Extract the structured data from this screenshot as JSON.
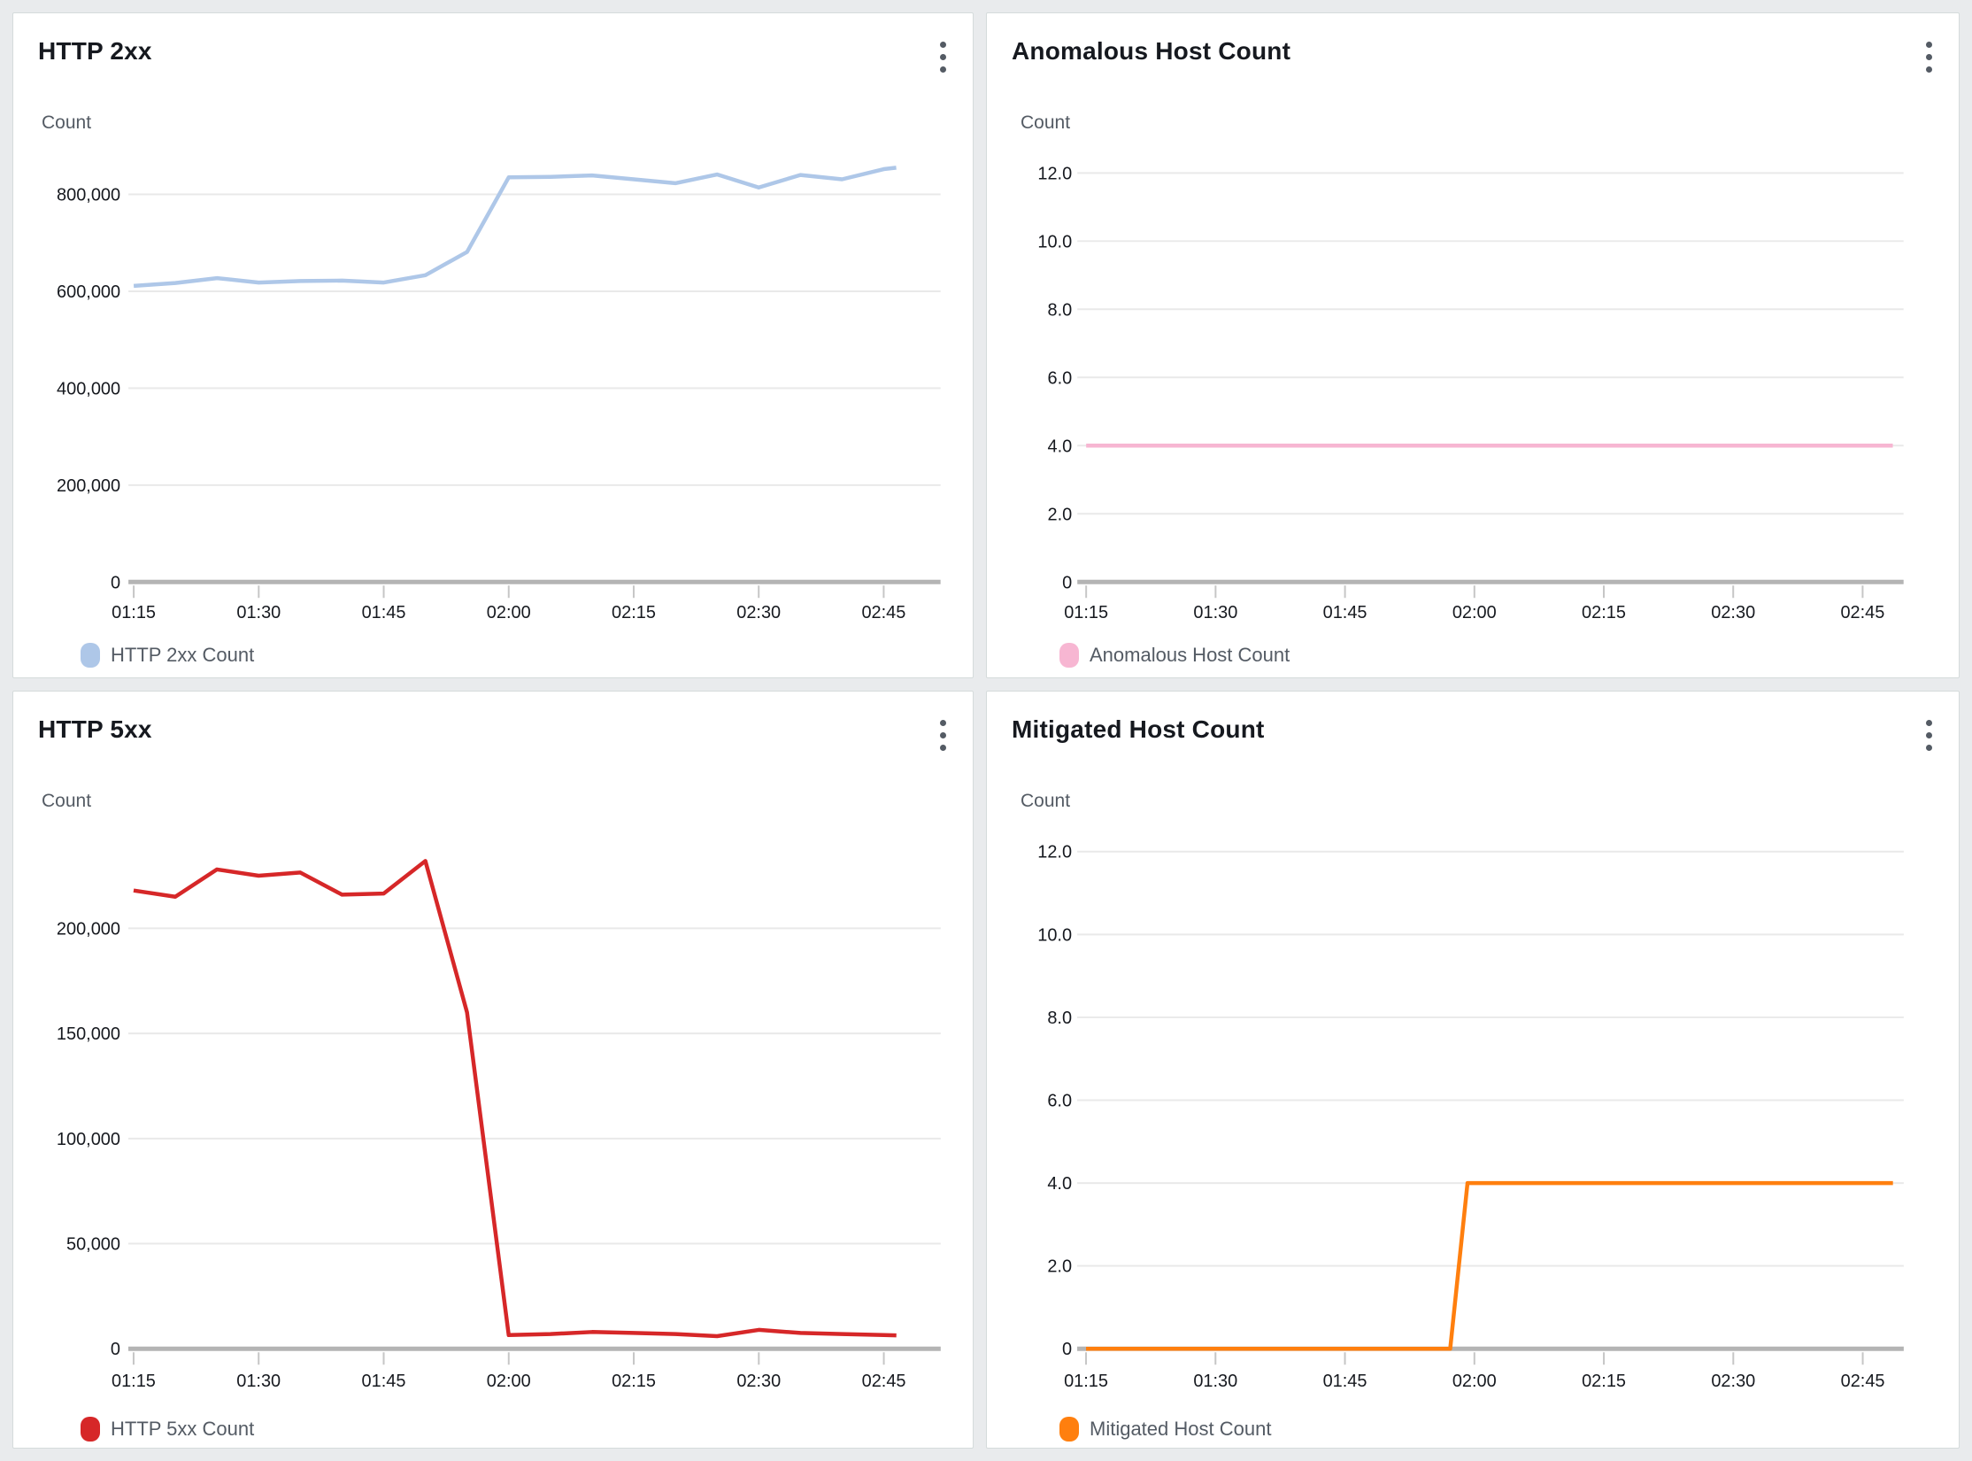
{
  "ui": {
    "panel_menu_icon": "kebab-menu-icon",
    "y_axis_title": "Count",
    "page_background": "#e9ebed",
    "panel_background": "#ffffff",
    "axis_color": "#b4b4b4",
    "gridline_color": "#e9e9e9"
  },
  "chart_data": [
    {
      "id": "http-2xx",
      "type": "line",
      "title": "HTTP 2xx",
      "ylabel": "Count",
      "grid": "horizontal",
      "legend_position": "bottom",
      "x_ticks": [
        {
          "t": 0,
          "label": "01:15"
        },
        {
          "t": 15,
          "label": "01:30"
        },
        {
          "t": 30,
          "label": "01:45"
        },
        {
          "t": 45,
          "label": "02:00"
        },
        {
          "t": 60,
          "label": "02:15"
        },
        {
          "t": 75,
          "label": "02:30"
        },
        {
          "t": 90,
          "label": "02:45"
        }
      ],
      "y_ticks": [
        {
          "v": 0,
          "label": "0"
        },
        {
          "v": 200000,
          "label": "200,000"
        },
        {
          "v": 400000,
          "label": "400,000"
        },
        {
          "v": 600000,
          "label": "600,000"
        },
        {
          "v": 800000,
          "label": "800,000"
        }
      ],
      "series": [
        {
          "name": "HTTP 2xx Count",
          "color": "#aec7e8",
          "points": [
            [
              0,
              611000
            ],
            [
              5,
              617000
            ],
            [
              10,
              627000
            ],
            [
              15,
              618000
            ],
            [
              20,
              621000
            ],
            [
              25,
              622000
            ],
            [
              30,
              618000
            ],
            [
              35,
              633000
            ],
            [
              40,
              681000
            ],
            [
              45,
              835000
            ],
            [
              50,
              836000
            ],
            [
              55,
              839000
            ],
            [
              60,
              831000
            ],
            [
              65,
              823000
            ],
            [
              70,
              841000
            ],
            [
              75,
              814000
            ],
            [
              80,
              840000
            ],
            [
              85,
              831000
            ],
            [
              90,
              852000
            ],
            [
              91.5,
              855000
            ]
          ]
        }
      ]
    },
    {
      "id": "anomalous-host-count",
      "type": "line",
      "title": "Anomalous Host Count",
      "ylabel": "Count",
      "grid": "horizontal",
      "legend_position": "bottom",
      "x_ticks": [
        {
          "t": 0,
          "label": "01:15"
        },
        {
          "t": 15,
          "label": "01:30"
        },
        {
          "t": 30,
          "label": "01:45"
        },
        {
          "t": 45,
          "label": "02:00"
        },
        {
          "t": 60,
          "label": "02:15"
        },
        {
          "t": 75,
          "label": "02:30"
        },
        {
          "t": 90,
          "label": "02:45"
        }
      ],
      "y_ticks": [
        {
          "v": 0,
          "label": "0"
        },
        {
          "v": 2,
          "label": "2.0"
        },
        {
          "v": 4,
          "label": "4.0"
        },
        {
          "v": 6,
          "label": "6.0"
        },
        {
          "v": 8,
          "label": "8.0"
        },
        {
          "v": 10,
          "label": "10.0"
        },
        {
          "v": 12,
          "label": "12.0"
        }
      ],
      "series": [
        {
          "name": "Anomalous Host Count",
          "color": "#f7b6d2",
          "points": [
            [
              0,
              4
            ],
            [
              93.5,
              4
            ]
          ]
        }
      ]
    },
    {
      "id": "http-5xx",
      "type": "line",
      "title": "HTTP 5xx",
      "ylabel": "Count",
      "grid": "horizontal",
      "legend_position": "bottom",
      "x_ticks": [
        {
          "t": 0,
          "label": "01:15"
        },
        {
          "t": 15,
          "label": "01:30"
        },
        {
          "t": 30,
          "label": "01:45"
        },
        {
          "t": 45,
          "label": "02:00"
        },
        {
          "t": 60,
          "label": "02:15"
        },
        {
          "t": 75,
          "label": "02:30"
        },
        {
          "t": 90,
          "label": "02:45"
        }
      ],
      "y_ticks": [
        {
          "v": 0,
          "label": "0"
        },
        {
          "v": 50000,
          "label": "50,000"
        },
        {
          "v": 100000,
          "label": "100,000"
        },
        {
          "v": 150000,
          "label": "150,000"
        },
        {
          "v": 200000,
          "label": "200,000"
        }
      ],
      "series": [
        {
          "name": "HTTP 5xx Count",
          "color": "#d62728",
          "points": [
            [
              0,
              218000
            ],
            [
              5,
              215000
            ],
            [
              10,
              228000
            ],
            [
              15,
              225000
            ],
            [
              20,
              226500
            ],
            [
              25,
              216000
            ],
            [
              30,
              216500
            ],
            [
              35,
              232000
            ],
            [
              40,
              160000
            ],
            [
              45,
              6500
            ],
            [
              50,
              7000
            ],
            [
              55,
              8000
            ],
            [
              60,
              7500
            ],
            [
              65,
              7000
            ],
            [
              70,
              6000
            ],
            [
              75,
              9000
            ],
            [
              80,
              7500
            ],
            [
              85,
              7000
            ],
            [
              90,
              6500
            ],
            [
              91.5,
              6400
            ]
          ]
        }
      ]
    },
    {
      "id": "mitigated-host-count",
      "type": "line",
      "title": "Mitigated Host Count",
      "ylabel": "Count",
      "grid": "horizontal",
      "legend_position": "bottom",
      "x_ticks": [
        {
          "t": 0,
          "label": "01:15"
        },
        {
          "t": 15,
          "label": "01:30"
        },
        {
          "t": 30,
          "label": "01:45"
        },
        {
          "t": 45,
          "label": "02:00"
        },
        {
          "t": 60,
          "label": "02:15"
        },
        {
          "t": 75,
          "label": "02:30"
        },
        {
          "t": 90,
          "label": "02:45"
        }
      ],
      "y_ticks": [
        {
          "v": 0,
          "label": "0"
        },
        {
          "v": 2,
          "label": "2.0"
        },
        {
          "v": 4,
          "label": "4.0"
        },
        {
          "v": 6,
          "label": "6.0"
        },
        {
          "v": 8,
          "label": "8.0"
        },
        {
          "v": 10,
          "label": "10.0"
        },
        {
          "v": 12,
          "label": "12.0"
        }
      ],
      "series": [
        {
          "name": "Mitigated Host Count",
          "color": "#ff7f0e",
          "points": [
            [
              0,
              0
            ],
            [
              42.2,
              0
            ],
            [
              44.2,
              4
            ],
            [
              93.5,
              4
            ]
          ]
        }
      ]
    }
  ]
}
